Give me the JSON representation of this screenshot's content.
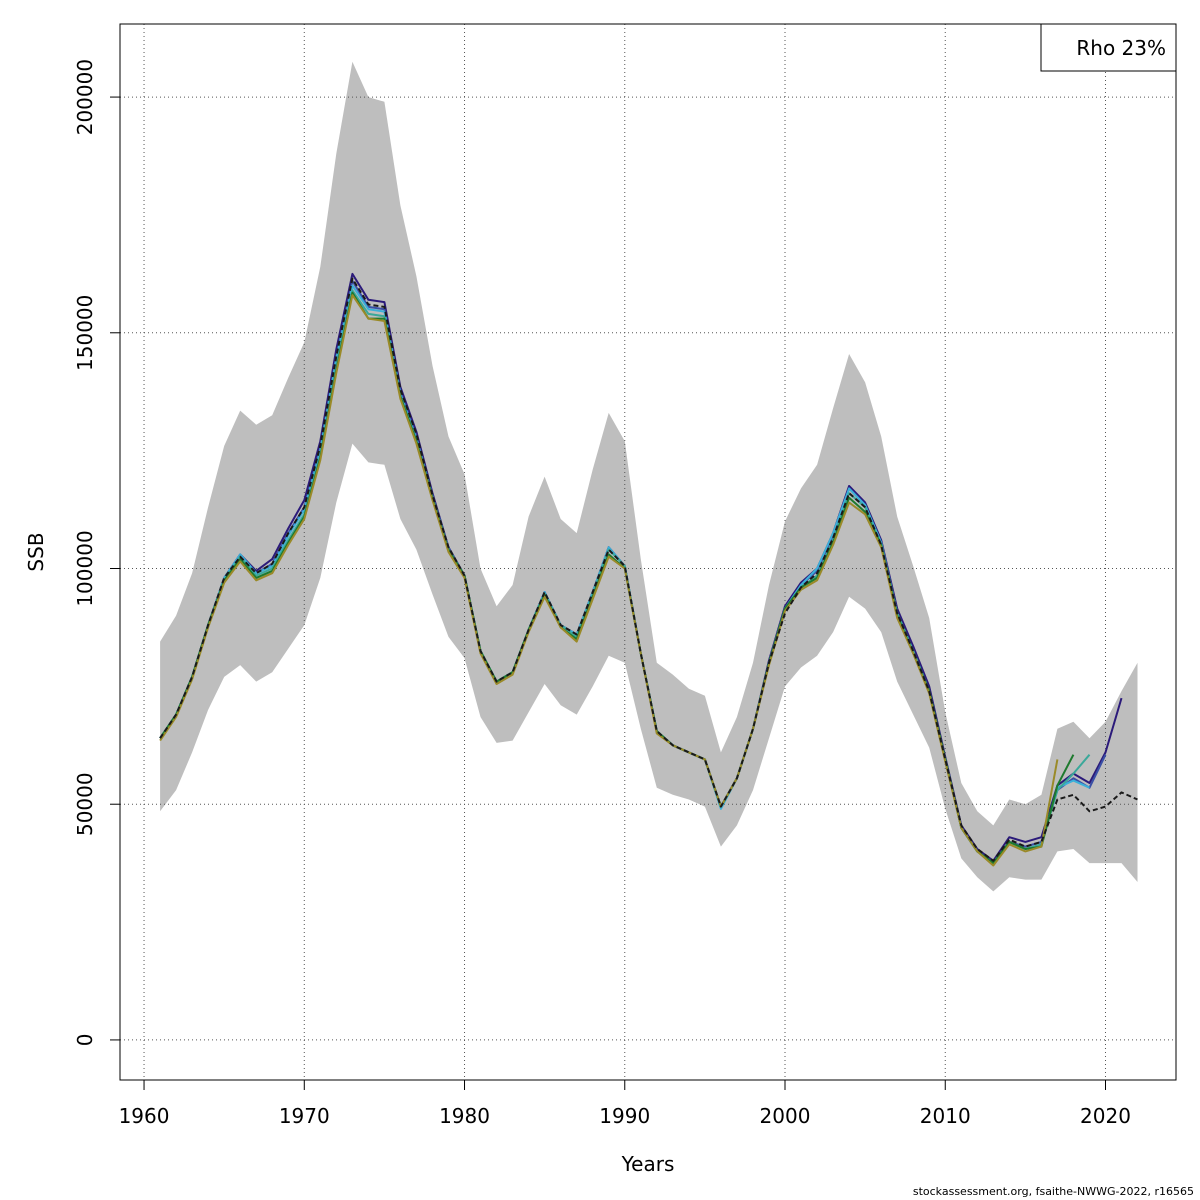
{
  "chart_data": {
    "type": "line",
    "xlabel": "Years",
    "ylabel": "SSB",
    "xlim": [
      1958.5,
      2024.4
    ],
    "ylim": [
      -8500,
      215500
    ],
    "xticks": [
      1960,
      1970,
      1980,
      1990,
      2000,
      2010,
      2020
    ],
    "yticks": [
      0,
      50000,
      100000,
      150000,
      200000
    ],
    "xtick_labels": [
      "1960",
      "1970",
      "1980",
      "1990",
      "2000",
      "2010",
      "2020"
    ],
    "ytick_labels": [
      "0",
      "50000",
      "100000",
      "150000",
      "200000"
    ],
    "grid": true,
    "legend": {
      "position": "top-right",
      "text": "Rho 23%"
    },
    "band": {
      "x": [
        1961,
        1962,
        1963,
        1964,
        1965,
        1966,
        1967,
        1968,
        1969,
        1970,
        1971,
        1972,
        1973,
        1974,
        1975,
        1976,
        1977,
        1978,
        1979,
        1980,
        1981,
        1982,
        1983,
        1984,
        1985,
        1986,
        1987,
        1988,
        1989,
        1990,
        1991,
        1992,
        1993,
        1994,
        1995,
        1996,
        1997,
        1998,
        1999,
        2000,
        2001,
        2002,
        2003,
        2004,
        2005,
        2006,
        2007,
        2008,
        2009,
        2010,
        2011,
        2012,
        2013,
        2014,
        2015,
        2016,
        2017,
        2018,
        2019,
        2020,
        2021,
        2022
      ],
      "upper": [
        84500,
        90000,
        99000,
        113000,
        126000,
        133500,
        130500,
        132500,
        140500,
        148000,
        164000,
        188000,
        207500,
        200000,
        199000,
        177000,
        162000,
        143000,
        128000,
        120000,
        100000,
        92000,
        96500,
        111000,
        119500,
        110500,
        107500,
        121000,
        133000,
        127000,
        102000,
        80000,
        77500,
        74500,
        73000,
        61000,
        68500,
        80000,
        96500,
        110000,
        117000,
        122000,
        134000,
        145500,
        139500,
        128000,
        111000,
        100500,
        89500,
        69500,
        54500,
        48500,
        45500,
        51000,
        50000,
        52000,
        66000,
        67500,
        64000,
        67500,
        74000,
        80000
      ],
      "lower": [
        48500,
        53000,
        61000,
        70000,
        77000,
        79500,
        76000,
        78000,
        83000,
        88000,
        98000,
        114000,
        126500,
        122500,
        122000,
        110500,
        104000,
        94500,
        85500,
        81000,
        68500,
        63000,
        63500,
        69500,
        75500,
        71000,
        69000,
        75000,
        81500,
        80000,
        66000,
        53500,
        52000,
        51000,
        49500,
        41000,
        45500,
        53000,
        64000,
        75000,
        79000,
        81500,
        86500,
        94000,
        91500,
        86500,
        76000,
        69000,
        62000,
        49000,
        38500,
        34500,
        31500,
        34500,
        34000,
        34000,
        40000,
        40500,
        37500,
        37500,
        37500,
        33500
      ]
    },
    "series": [
      {
        "color": "#2b1a7a",
        "x": [
          1961,
          1962,
          1963,
          1964,
          1965,
          1966,
          1967,
          1968,
          1969,
          1970,
          1971,
          1972,
          1973,
          1974,
          1975,
          1976,
          1977,
          1978,
          1979,
          1980,
          1981,
          1982,
          1983,
          1984,
          1985,
          1986,
          1987,
          1988,
          1989,
          1990,
          1991,
          1992,
          1993,
          1994,
          1995,
          1996,
          1997,
          1998,
          1999,
          2000,
          2001,
          2002,
          2003,
          2004,
          2005,
          2006,
          2007,
          2008,
          2009,
          2010,
          2011,
          2012,
          2013,
          2014,
          2015,
          2016,
          2017,
          2018,
          2019,
          2020,
          2021
        ],
        "y": [
          64000,
          69000,
          77000,
          88000,
          98000,
          103000,
          99500,
          102000,
          108500,
          114500,
          127000,
          146500,
          162500,
          157000,
          156500,
          138500,
          129000,
          116000,
          104500,
          98500,
          82500,
          76000,
          78000,
          87000,
          95000,
          88000,
          86000,
          95000,
          104500,
          100500,
          82000,
          65500,
          62500,
          61000,
          59500,
          49500,
          55500,
          66000,
          80500,
          92000,
          97000,
          100000,
          107500,
          117500,
          114000,
          106000,
          91500,
          83500,
          75000,
          60000,
          45500,
          40500,
          38000,
          43000,
          42000,
          43000,
          54000,
          56500,
          54500,
          61000,
          72500
        ]
      },
      {
        "color": "#3a4fa6",
        "x": [
          1961,
          1962,
          1963,
          1964,
          1965,
          1966,
          1967,
          1968,
          1969,
          1970,
          1971,
          1972,
          1973,
          1974,
          1975,
          1976,
          1977,
          1978,
          1979,
          1980,
          1981,
          1982,
          1983,
          1984,
          1985,
          1986,
          1987,
          1988,
          1989,
          1990,
          1991,
          1992,
          1993,
          1994,
          1995,
          1996,
          1997,
          1998,
          1999,
          2000,
          2001,
          2002,
          2003,
          2004,
          2005,
          2006,
          2007,
          2008,
          2009,
          2010,
          2011,
          2012,
          2013,
          2014,
          2015,
          2016,
          2017,
          2018,
          2019,
          2020
        ],
        "y": [
          64000,
          69000,
          77000,
          88000,
          98000,
          103000,
          99000,
          101000,
          107500,
          113000,
          125500,
          145000,
          161000,
          155500,
          155000,
          137500,
          128000,
          115500,
          104500,
          98500,
          82500,
          76000,
          78000,
          87000,
          95000,
          88000,
          86000,
          95000,
          104500,
          100500,
          82000,
          65500,
          62500,
          61000,
          59500,
          49500,
          55500,
          66000,
          80000,
          91500,
          96500,
          99500,
          107000,
          117000,
          113500,
          105500,
          90500,
          82500,
          74000,
          59500,
          45000,
          40000,
          37500,
          42000,
          41000,
          42000,
          53000,
          55500,
          53500,
          60500
        ]
      },
      {
        "color": "#3bb0d9",
        "x": [
          1961,
          1962,
          1963,
          1964,
          1965,
          1966,
          1967,
          1968,
          1969,
          1970,
          1971,
          1972,
          1973,
          1974,
          1975,
          1976,
          1977,
          1978,
          1979,
          1980,
          1981,
          1982,
          1983,
          1984,
          1985,
          1986,
          1987,
          1988,
          1989,
          1990,
          1991,
          1992,
          1993,
          1994,
          1995,
          1996,
          1997,
          1998,
          1999,
          2000,
          2001,
          2002,
          2003,
          2004,
          2005,
          2006,
          2007,
          2008,
          2009,
          2010,
          2011,
          2012,
          2013,
          2014,
          2015,
          2016,
          2017,
          2018,
          2019
        ],
        "y": [
          64000,
          69000,
          77000,
          88000,
          98000,
          103000,
          99000,
          100500,
          107000,
          112500,
          125000,
          144500,
          160000,
          155000,
          154500,
          137000,
          127500,
          115000,
          104000,
          98500,
          82500,
          76000,
          78000,
          87000,
          95000,
          88000,
          86000,
          95000,
          104500,
          100500,
          82000,
          65500,
          62500,
          61000,
          59500,
          49000,
          55500,
          66000,
          80000,
          91500,
          96500,
          100000,
          107500,
          117000,
          113500,
          105500,
          90500,
          82500,
          74000,
          59500,
          45000,
          40000,
          37500,
          42000,
          40500,
          41500,
          53500,
          55000,
          53500
        ]
      },
      {
        "color": "#3aa89a",
        "x": [
          1961,
          1962,
          1963,
          1964,
          1965,
          1966,
          1967,
          1968,
          1969,
          1970,
          1971,
          1972,
          1973,
          1974,
          1975,
          1976,
          1977,
          1978,
          1979,
          1980,
          1981,
          1982,
          1983,
          1984,
          1985,
          1986,
          1987,
          1988,
          1989,
          1990,
          1991,
          1992,
          1993,
          1994,
          1995,
          1996,
          1997,
          1998,
          1999,
          2000,
          2001,
          2002,
          2003,
          2004,
          2005,
          2006,
          2007,
          2008,
          2009,
          2010,
          2011,
          2012,
          2013,
          2014,
          2015,
          2016,
          2017,
          2018,
          2019
        ],
        "y": [
          64000,
          69000,
          77000,
          88000,
          97500,
          102500,
          98500,
          100000,
          106000,
          111500,
          124000,
          143000,
          159000,
          154000,
          153500,
          136500,
          127000,
          115000,
          104000,
          98500,
          82500,
          76000,
          78000,
          87000,
          94500,
          88000,
          85500,
          94500,
          104000,
          100500,
          82000,
          65500,
          62500,
          61000,
          59500,
          49500,
          55500,
          66000,
          80000,
          91500,
          96000,
          98500,
          106000,
          116000,
          113000,
          105000,
          90500,
          82500,
          74000,
          59500,
          45000,
          40000,
          37500,
          42000,
          40500,
          41500,
          53000,
          56500,
          60500
        ]
      },
      {
        "color": "#1e7a2e",
        "x": [
          1961,
          1962,
          1963,
          1964,
          1965,
          1966,
          1967,
          1968,
          1969,
          1970,
          1971,
          1972,
          1973,
          1974,
          1975,
          1976,
          1977,
          1978,
          1979,
          1980,
          1981,
          1982,
          1983,
          1984,
          1985,
          1986,
          1987,
          1988,
          1989,
          1990,
          1991,
          1992,
          1993,
          1994,
          1995,
          1996,
          1997,
          1998,
          1999,
          2000,
          2001,
          2002,
          2003,
          2004,
          2005,
          2006,
          2007,
          2008,
          2009,
          2010,
          2011,
          2012,
          2013,
          2014,
          2015,
          2016,
          2017,
          2018
        ],
        "y": [
          64000,
          69000,
          77000,
          88000,
          97500,
          102000,
          98000,
          99500,
          105500,
          111000,
          123500,
          142000,
          158500,
          153000,
          153000,
          136500,
          127000,
          115000,
          104000,
          98500,
          82500,
          76000,
          78000,
          87000,
          94500,
          87500,
          85000,
          94000,
          103000,
          100000,
          82000,
          65500,
          62500,
          61000,
          59500,
          49500,
          55500,
          66000,
          80000,
          91500,
          96000,
          98000,
          105500,
          115000,
          112000,
          105000,
          90000,
          82000,
          74000,
          59500,
          45000,
          40000,
          37500,
          42000,
          40500,
          41000,
          54000,
          60500
        ]
      },
      {
        "color": "#9a8a28",
        "x": [
          1961,
          1962,
          1963,
          1964,
          1965,
          1966,
          1967,
          1968,
          1969,
          1970,
          1971,
          1972,
          1973,
          1974,
          1975,
          1976,
          1977,
          1978,
          1979,
          1980,
          1981,
          1982,
          1983,
          1984,
          1985,
          1986,
          1987,
          1988,
          1989,
          1990,
          1991,
          1992,
          1993,
          1994,
          1995,
          1996,
          1997,
          1998,
          1999,
          2000,
          2001,
          2002,
          2003,
          2004,
          2005,
          2006,
          2007,
          2008,
          2009,
          2010,
          2011,
          2012,
          2013,
          2014,
          2015,
          2016,
          2017
        ],
        "y": [
          63500,
          68500,
          76500,
          87500,
          97000,
          101500,
          97500,
          99000,
          105000,
          110500,
          123000,
          141500,
          158000,
          153000,
          152500,
          136000,
          126500,
          114500,
          103500,
          98000,
          82000,
          75500,
          77500,
          86500,
          94000,
          87500,
          84500,
          93500,
          102500,
          100000,
          82000,
          65000,
          62500,
          61000,
          59500,
          49500,
          55500,
          66000,
          79500,
          91000,
          95500,
          97500,
          105000,
          114000,
          111500,
          104500,
          89500,
          82000,
          73500,
          59000,
          45000,
          40000,
          37000,
          41500,
          40000,
          41000,
          59500
        ]
      },
      {
        "color": "#1a1a1a",
        "dashed": true,
        "x": [
          1961,
          1962,
          1963,
          1964,
          1965,
          1966,
          1967,
          1968,
          1969,
          1970,
          1971,
          1972,
          1973,
          1974,
          1975,
          1976,
          1977,
          1978,
          1979,
          1980,
          1981,
          1982,
          1983,
          1984,
          1985,
          1986,
          1987,
          1988,
          1989,
          1990,
          1991,
          1992,
          1993,
          1994,
          1995,
          1996,
          1997,
          1998,
          1999,
          2000,
          2001,
          2002,
          2003,
          2004,
          2005,
          2006,
          2007,
          2008,
          2009,
          2010,
          2011,
          2012,
          2013,
          2014,
          2015,
          2016,
          2017,
          2018,
          2019,
          2020,
          2021,
          2022
        ],
        "y": [
          64000,
          69000,
          77000,
          88000,
          98000,
          102500,
          99000,
          101000,
          107500,
          113000,
          126000,
          145000,
          161500,
          156000,
          155500,
          138000,
          128500,
          115500,
          104500,
          98500,
          82500,
          76000,
          78000,
          87000,
          95000,
          88000,
          86000,
          95000,
          104000,
          100500,
          82000,
          65500,
          62500,
          61000,
          59500,
          49500,
          55500,
          66000,
          80000,
          90500,
          96000,
          99000,
          106500,
          116000,
          113000,
          105000,
          90500,
          82500,
          74000,
          59500,
          45500,
          40500,
          38000,
          42500,
          41000,
          42000,
          51000,
          52000,
          48500,
          49500,
          52500,
          51000
        ]
      }
    ]
  },
  "footer": "stockassessment.org, fsaithe-NWWG-2022, r16565"
}
